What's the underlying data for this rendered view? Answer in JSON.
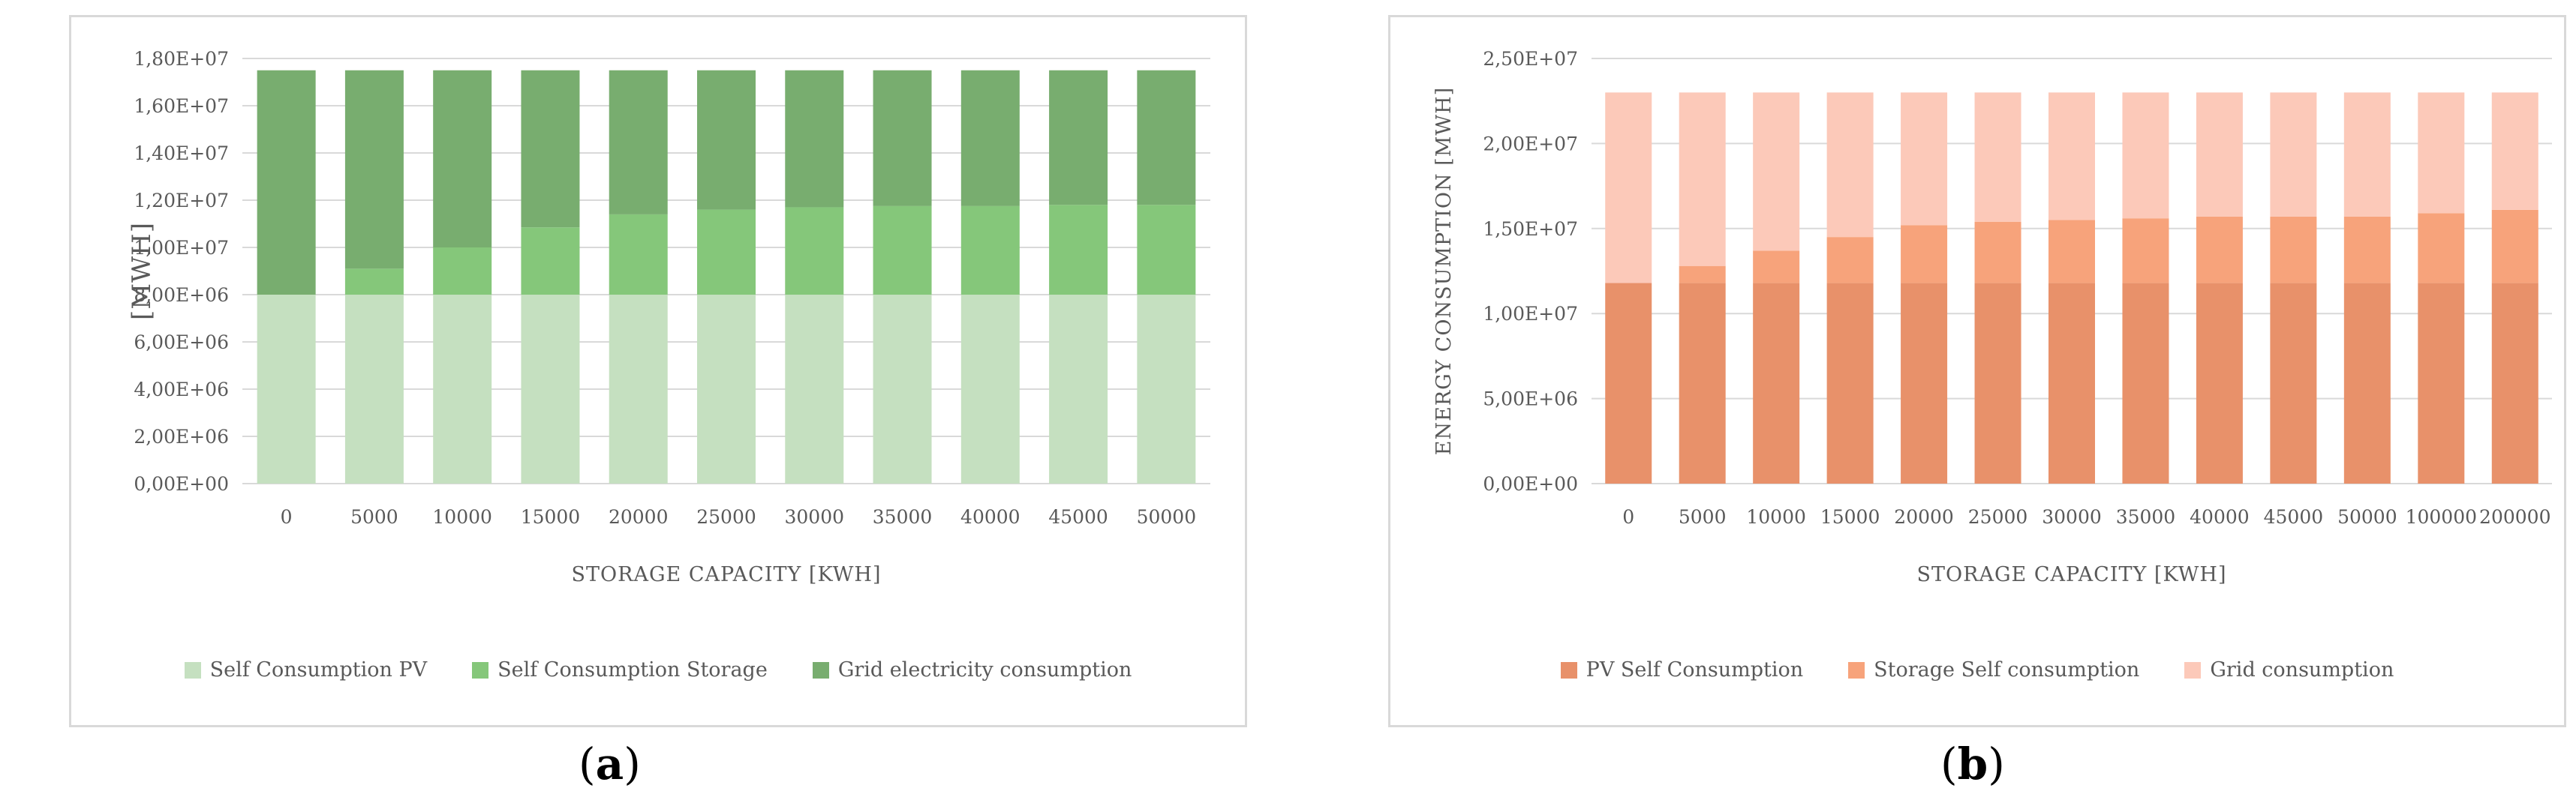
{
  "chart_data": [
    {
      "id": "a",
      "type": "bar",
      "stacked": true,
      "panel_label": "a",
      "title": "",
      "xlabel": "STORAGE CAPACITY [KWH]",
      "ylabel": "[MWH]",
      "ylim": [
        0,
        18000000
      ],
      "ytick_step": 2000000,
      "ytick_labels": [
        "0,00E+00",
        "2,00E+06",
        "4,00E+06",
        "6,00E+06",
        "8,00E+06",
        "1,00E+07",
        "1,20E+07",
        "1,40E+07",
        "1,60E+07",
        "1,80E+07"
      ],
      "grid": true,
      "legend_position": "bottom",
      "categories": [
        "0",
        "5000",
        "10000",
        "15000",
        "20000",
        "25000",
        "30000",
        "35000",
        "40000",
        "45000",
        "50000"
      ],
      "series": [
        {
          "name": "Self Consumption PV",
          "color": "#c5e0c0",
          "values": [
            8000000,
            8000000,
            8000000,
            8000000,
            8000000,
            8000000,
            8000000,
            8000000,
            8000000,
            8000000,
            8000000
          ]
        },
        {
          "name": "Self Consumption Storage",
          "color": "#85c77a",
          "values": [
            0,
            1100000,
            2000000,
            2850000,
            3400000,
            3600000,
            3700000,
            3750000,
            3750000,
            3800000,
            3800000
          ]
        },
        {
          "name": "Grid electricity consumption",
          "color": "#78ad6f",
          "values": [
            9500000,
            8400000,
            7500000,
            6650000,
            6100000,
            5900000,
            5800000,
            5750000,
            5750000,
            5700000,
            5700000
          ]
        }
      ]
    },
    {
      "id": "b",
      "type": "bar",
      "stacked": true,
      "panel_label": "b",
      "title": "",
      "xlabel": "STORAGE CAPACITY [KWH]",
      "ylabel": "ENERGY CONSUMPTION [MWH]",
      "ylim": [
        0,
        25000000
      ],
      "ytick_step": 5000000,
      "ytick_labels": [
        "0,00E+00",
        "5,00E+06",
        "1,00E+07",
        "1,50E+07",
        "2,00E+07",
        "2,50E+07"
      ],
      "grid": true,
      "legend_position": "bottom",
      "categories": [
        "0",
        "5000",
        "10000",
        "15000",
        "20000",
        "25000",
        "30000",
        "35000",
        "40000",
        "45000",
        "50000",
        "100000",
        "200000"
      ],
      "series": [
        {
          "name": "PV Self Consumption",
          "color": "#e8916a",
          "values": [
            11800000,
            11800000,
            11800000,
            11800000,
            11800000,
            11800000,
            11800000,
            11800000,
            11800000,
            11800000,
            11800000,
            11800000,
            11800000
          ]
        },
        {
          "name": "Storage Self consumption",
          "color": "#f7a37b",
          "values": [
            0,
            1000000,
            1900000,
            2700000,
            3400000,
            3600000,
            3700000,
            3800000,
            3900000,
            3900000,
            3900000,
            4100000,
            4300000
          ]
        },
        {
          "name": "Grid consumption",
          "color": "#fcc9b9",
          "values": [
            11200000,
            10200000,
            9300000,
            8500000,
            7800000,
            7600000,
            7500000,
            7400000,
            7300000,
            7300000,
            7300000,
            7100000,
            6900000
          ]
        }
      ]
    }
  ]
}
